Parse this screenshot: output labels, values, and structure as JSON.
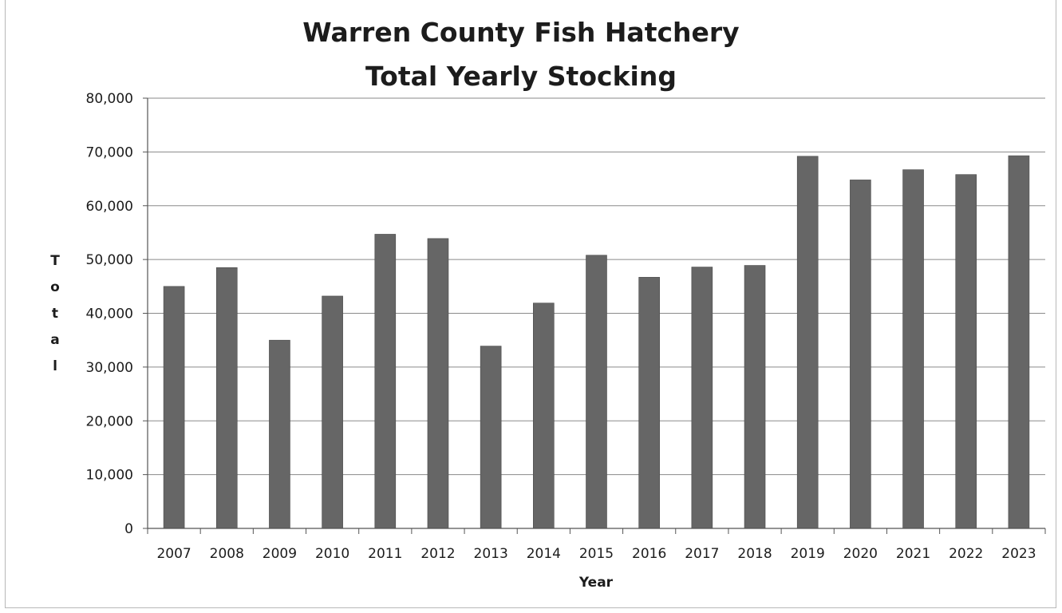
{
  "chart_data": {
    "type": "bar",
    "title_lines": [
      "Warren County Fish Hatchery",
      "Total Yearly Stocking"
    ],
    "xlabel": "Year",
    "ylabel": "Total",
    "ylim": [
      0,
      80000
    ],
    "yticks": [
      "0",
      "10,000",
      "20,000",
      "30,000",
      "40,000",
      "50,000",
      "60,000",
      "70,000",
      "80,000"
    ],
    "grid": true,
    "legend": "none",
    "bar_color": "#666666",
    "categories": [
      "2007",
      "2008",
      "2009",
      "2010",
      "2011",
      "2012",
      "2013",
      "2014",
      "2015",
      "2016",
      "2017",
      "2018",
      "2019",
      "2020",
      "2021",
      "2022",
      "2023"
    ],
    "values": [
      45000,
      48500,
      35000,
      43200,
      54700,
      53900,
      33900,
      41900,
      50800,
      46700,
      48600,
      48900,
      69200,
      64800,
      66700,
      65800,
      69300
    ]
  }
}
